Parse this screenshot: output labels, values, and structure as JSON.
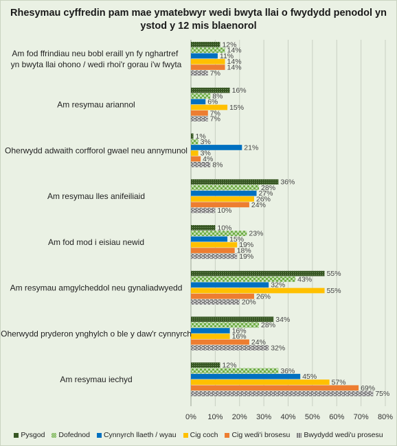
{
  "chart_data": {
    "type": "bar",
    "orientation": "horizontal",
    "title": "Rhesymau cyffredin pam mae ymatebwyr wedi bwyta llai o fwydydd penodol yn ystod y 12 mis blaenorol",
    "categories": [
      "Am fod ffrindiau neu bobl eraill yn fy nghartref  yn bwyta llai ohono / wedi rhoi'r gorau i'w fwyta",
      "Am resymau ariannol",
      "Oherwydd adwaith corfforol gwael neu annymunol",
      "Am resymau lles anifeiliaid",
      "Am fod mod i eisiau newid",
      "Am resymau amgylcheddol neu gynaliadwyedd",
      "Oherwydd pryderon ynghylch o ble y daw'r cynnyrch",
      "Am resymau iechyd"
    ],
    "series": [
      {
        "name": "Pysgod",
        "color": "#375623",
        "pattern": "dots",
        "values": [
          12,
          16,
          1,
          36,
          10,
          55,
          34,
          12
        ]
      },
      {
        "name": "Dofednod",
        "color": "#70ad47",
        "pattern": "checker",
        "values": [
          14,
          8,
          3,
          28,
          23,
          43,
          28,
          36
        ]
      },
      {
        "name": "Cynnyrch llaeth / wyau",
        "color": "#0070c0",
        "pattern": "solid",
        "values": [
          11,
          6,
          21,
          27,
          15,
          32,
          16,
          45
        ]
      },
      {
        "name": "Cig coch",
        "color": "#ffc000",
        "pattern": "solid",
        "values": [
          14,
          15,
          3,
          26,
          19,
          55,
          16,
          57
        ]
      },
      {
        "name": "Cig wedi'i brosesu",
        "color": "#ed7d31",
        "pattern": "solid",
        "values": [
          14,
          7,
          4,
          24,
          18,
          26,
          24,
          69
        ]
      },
      {
        "name": "Bwydydd wedi'u prosesu",
        "color": "#7f7f7f",
        "pattern": "dashed",
        "values": [
          7,
          7,
          8,
          10,
          19,
          20,
          32,
          75
        ]
      }
    ],
    "xlim": [
      0,
      80
    ],
    "xticks": [
      0,
      10,
      20,
      30,
      40,
      50,
      60,
      70,
      80
    ],
    "tick_suffix": "%",
    "grid": true,
    "legend_position": "bottom"
  }
}
